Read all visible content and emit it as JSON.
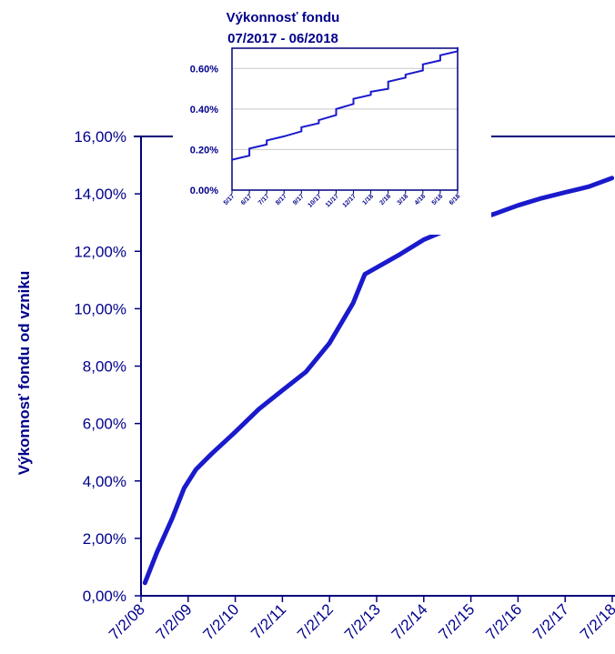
{
  "colors": {
    "series": "#1a1acc",
    "axis": "#00007a",
    "text": "#00008b",
    "grid": "#c8c8c8"
  },
  "chart_data": [
    {
      "type": "line",
      "title": "",
      "xlabel": "",
      "ylabel": "Výkonnosť fondu od vzniku",
      "x_tick_labels": [
        "7/2/08",
        "7/2/09",
        "7/2/10",
        "7/2/11",
        "7/2/12",
        "7/2/13",
        "7/2/14",
        "7/2/15",
        "7/2/16",
        "7/2/17",
        "7/2/18"
      ],
      "y_tick_labels": [
        "0,00%",
        "2,00%",
        "4,00%",
        "6,00%",
        "8,00%",
        "10,00%",
        "12,00%",
        "14,00%",
        "16,00%"
      ],
      "ylim": [
        0,
        16
      ],
      "xlim": [
        "2008-07-02",
        "2018-07-02"
      ],
      "grid": false,
      "series": [
        {
          "x": [
            "2008-08-01",
            "2008-11-01",
            "2009-03-01",
            "2009-06-01",
            "2009-09-01",
            "2010-01-01",
            "2010-07-01",
            "2011-01-01",
            "2011-07-01",
            "2012-01-01",
            "2012-07-01",
            "2013-01-01",
            "2013-04-01",
            "2014-01-01",
            "2014-07-01",
            "2015-01-01",
            "2015-07-01",
            "2016-01-01",
            "2016-07-01",
            "2017-01-01",
            "2017-07-01",
            "2018-01-01",
            "2018-06-29"
          ],
          "y": [
            0.45,
            1.5,
            2.7,
            3.75,
            4.4,
            4.95,
            5.7,
            6.5,
            7.15,
            7.8,
            8.8,
            10.2,
            11.2,
            11.9,
            12.4,
            12.75,
            13.05,
            13.3,
            13.6,
            13.85,
            14.05,
            14.25,
            14.55
          ]
        }
      ]
    },
    {
      "type": "line",
      "title": "Výkonnosť fondu\n07/2017 - 06/2018",
      "title_lines": [
        "Výkonnosť fondu",
        "07/2017 - 06/2018"
      ],
      "xlabel": "",
      "ylabel": "",
      "x_tick_labels": [
        "5/17",
        "6/17",
        "7/17",
        "8/17",
        "9/17",
        "10/17",
        "11/17",
        "12/17",
        "1/18",
        "2/18",
        "3/18",
        "4/18",
        "5/18",
        "6/18"
      ],
      "y_tick_labels": [
        "0.00%",
        "0.20%",
        "0.40%",
        "0.60%"
      ],
      "ylim": [
        0,
        0.7
      ],
      "xlim": [
        "5/17",
        "6/18"
      ],
      "grid": true,
      "series": [
        {
          "x": [
            0,
            1,
            1,
            2,
            2,
            3,
            4,
            4,
            5,
            5,
            6,
            6,
            7,
            7,
            8,
            8,
            9,
            9,
            10,
            10,
            11,
            11,
            12,
            12,
            13,
            13
          ],
          "y": [
            0.15,
            0.17,
            0.205,
            0.225,
            0.245,
            0.265,
            0.29,
            0.31,
            0.33,
            0.345,
            0.37,
            0.4,
            0.425,
            0.45,
            0.47,
            0.485,
            0.5,
            0.535,
            0.555,
            0.57,
            0.59,
            0.62,
            0.64,
            0.665,
            0.685,
            0.705
          ]
        }
      ]
    }
  ]
}
